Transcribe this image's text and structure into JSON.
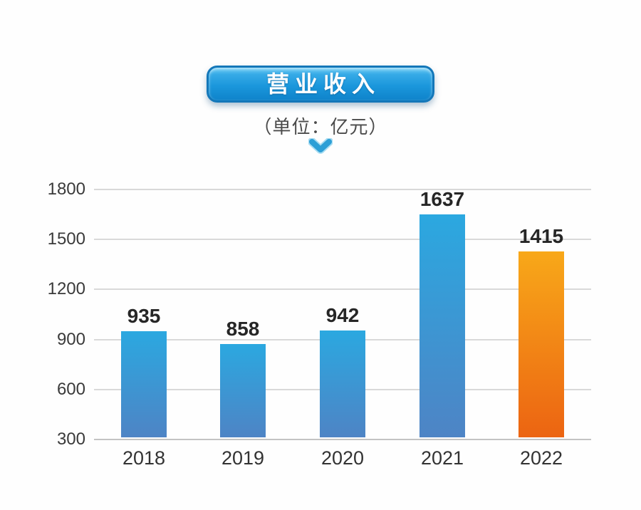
{
  "header": {
    "title": "营业收入",
    "subtitle": "（单位：亿元）"
  },
  "icons": {
    "chevron_down": "v"
  },
  "colors": {
    "banner_top": "#72cef5",
    "banner_mid": "#1b97dc",
    "banner_bottom": "#0e83ca",
    "banner_border": "#1377b9",
    "chevron": "#2d9fd6",
    "bar_blue_top": "#2ba8e0",
    "bar_blue_bottom": "#4e84c5",
    "bar_orange_top": "#f8a819",
    "bar_orange_bottom": "#ec6412",
    "gridline": "#d9d9d9",
    "baseline": "#c3c3c3",
    "axis_text": "#3a3a3a",
    "value_text": "#262626"
  },
  "chart_data": {
    "type": "bar",
    "title": "营业收入",
    "unit_label": "（单位：亿元）",
    "categories": [
      "2018",
      "2019",
      "2020",
      "2021",
      "2022"
    ],
    "values": [
      935,
      858,
      942,
      1637,
      1415
    ],
    "bar_colors": [
      "blue",
      "blue",
      "blue",
      "blue",
      "orange"
    ],
    "yticks": [
      "1800",
      "1500",
      "1200",
      "900",
      "600",
      "300"
    ],
    "ylim": [
      300,
      1800
    ],
    "xlabel": "",
    "ylabel": "",
    "grid": true,
    "legend": false
  }
}
